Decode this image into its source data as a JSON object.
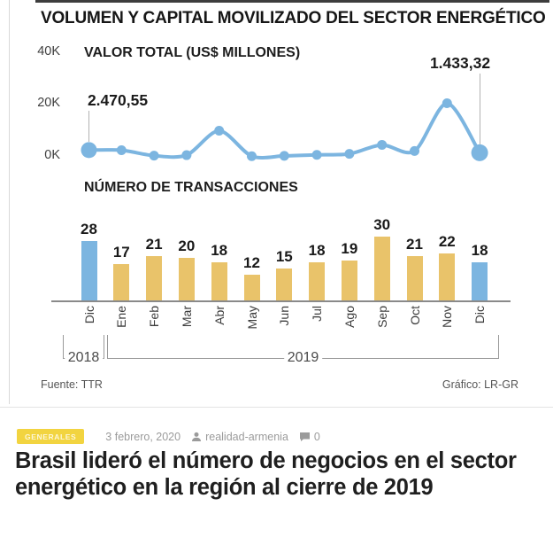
{
  "infographic": {
    "title": "VOLUMEN Y CAPITAL MOVILIZADO DEL SECTOR ENERGÉTICO",
    "source_left": "Fuente: TTR",
    "source_right": "Gráfico: LR-GR",
    "year_left": "2018",
    "year_right": "2019"
  },
  "chart_data": [
    {
      "type": "line",
      "title": "VALOR TOTAL (US$ MILLONES)",
      "x": [
        "Dic",
        "Ene",
        "Feb",
        "Mar",
        "Abr",
        "May",
        "Jun",
        "Jul",
        "Ago",
        "Sep",
        "Oct",
        "Nov",
        "Dic"
      ],
      "values": [
        2470.55,
        2400,
        300,
        500,
        10000,
        100,
        200,
        600,
        1000,
        4500,
        2100,
        20700,
        1433.32
      ],
      "annotations": [
        {
          "index": 0,
          "label": "2.470,55"
        },
        {
          "index": 12,
          "label": "1.433,32"
        }
      ],
      "yticks": [
        "40K",
        "20K",
        "0K"
      ],
      "ylim": [
        0,
        40000
      ],
      "grid": false,
      "line_color": "#7cb5e0"
    },
    {
      "type": "bar",
      "title": "NÚMERO DE TRANSACCIONES",
      "categories": [
        "Dic",
        "Ene",
        "Feb",
        "Mar",
        "Abr",
        "May",
        "Jun",
        "Jul",
        "Ago",
        "Sep",
        "Oct",
        "Nov",
        "Dic"
      ],
      "values": [
        28,
        17,
        21,
        20,
        18,
        12,
        15,
        18,
        19,
        30,
        21,
        22,
        18
      ],
      "bar_colors": {
        "default": "#e9c36a",
        "highlight": "#7cb5e0",
        "highlight_indexes": [
          0,
          12
        ]
      }
    }
  ],
  "meta": {
    "category": "GENERALES",
    "date": "3 febrero, 2020",
    "author": "realidad-armenia",
    "comments": "0"
  },
  "headline": "Brasil lideró el número de negocios en el sector energético en la región al cierre de 2019"
}
